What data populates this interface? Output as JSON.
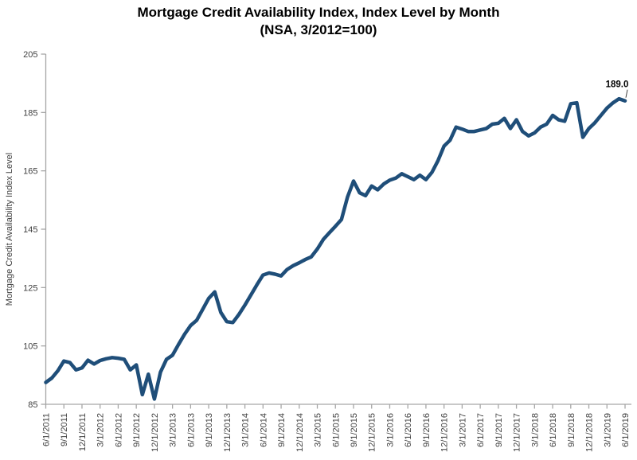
{
  "title": {
    "line1": "Mortgage Credit Availability Index, Index Level by Month",
    "line2": "(NSA, 3/2012=100)"
  },
  "chart_data": {
    "type": "line",
    "title": "Mortgage Credit Availability Index, Index Level by Month",
    "subtitle": "(NSA, 3/2012=100)",
    "xlabel": "",
    "ylabel": "Mortgage Credit Availability Index Level",
    "ylim": [
      85,
      205
    ],
    "yticks": [
      85,
      105,
      125,
      145,
      165,
      185,
      205
    ],
    "grid": false,
    "legend": "none",
    "x_frequency": "monthly",
    "x_start": "6/1/2011",
    "x_end": "6/1/2019",
    "x_tick_labels": [
      "6/1/2011",
      "9/1/2011",
      "12/1/2011",
      "3/1/2012",
      "6/1/2012",
      "9/1/2012",
      "12/1/2012",
      "3/1/2013",
      "6/1/2013",
      "9/1/2013",
      "12/1/2013",
      "3/1/2014",
      "6/1/2014",
      "9/1/2014",
      "12/1/2014",
      "3/1/2015",
      "6/1/2015",
      "9/1/2015",
      "12/1/2015",
      "3/1/2016",
      "6/1/2016",
      "9/1/2016",
      "12/1/2016",
      "3/1/2017",
      "6/1/2017",
      "9/1/2017",
      "12/1/2017",
      "3/1/2018",
      "6/1/2018",
      "9/1/2018",
      "12/1/2018",
      "3/1/2019",
      "6/1/2019"
    ],
    "values": [
      92.5,
      94.0,
      96.5,
      99.8,
      99.3,
      96.8,
      97.5,
      100.1,
      98.8,
      100.0,
      100.6,
      101.0,
      100.8,
      100.4,
      96.8,
      98.5,
      88.3,
      95.3,
      86.8,
      96.0,
      100.4,
      101.8,
      105.5,
      109.0,
      112.0,
      113.8,
      117.5,
      121.3,
      123.5,
      116.5,
      113.3,
      113.0,
      115.8,
      119.0,
      122.5,
      126.0,
      129.3,
      130.0,
      129.6,
      129.0,
      131.2,
      132.5,
      133.5,
      134.6,
      135.5,
      138.2,
      141.5,
      143.8,
      146.0,
      148.3,
      156.0,
      161.5,
      157.5,
      156.5,
      159.8,
      158.5,
      160.5,
      161.8,
      162.5,
      164.0,
      163.0,
      162.0,
      163.5,
      162.0,
      164.5,
      168.5,
      173.5,
      175.5,
      180.0,
      179.3,
      178.5,
      178.5,
      179.0,
      179.5,
      181.0,
      181.3,
      183.0,
      179.5,
      182.5,
      178.5,
      177.0,
      178.0,
      180.0,
      181.0,
      184.0,
      182.5,
      182.0,
      188.0,
      188.3,
      176.5,
      179.5,
      181.5,
      184.0,
      186.5,
      188.3,
      189.7,
      189.0
    ],
    "end_label": {
      "text": "189.0",
      "value": 189.0
    },
    "colors": {
      "line": "#1F4E79",
      "axis": "#A6A6A6",
      "tick_text": "#404040",
      "title_text": "#000000"
    }
  }
}
